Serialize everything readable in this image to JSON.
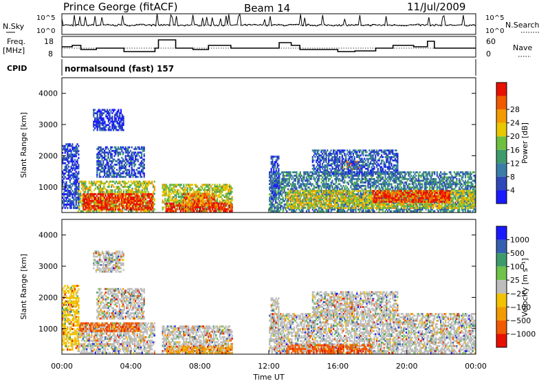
{
  "header": {
    "station": "Prince George (fitACF)",
    "beam": "Beam 14",
    "date": "11/Jul/2009"
  },
  "noise_panel": {
    "left_label": "N.Sky",
    "right_label": "N.Search",
    "left_ticks": [
      "10^5",
      "10^0"
    ],
    "right_ticks": [
      "10^5",
      "10^0"
    ]
  },
  "freq_panel": {
    "left_label_1": "Freq.",
    "left_label_2": "[MHz]",
    "right_label": "Nave",
    "left_ticks": [
      "18",
      "8"
    ],
    "right_ticks": [
      "60",
      "0"
    ]
  },
  "cpid": {
    "label": "CPID",
    "program": "normalsound (fast) 157"
  },
  "colors": {
    "power_scale": [
      "#1a1aff",
      "#2f48b8",
      "#3a7da8",
      "#3f9a6a",
      "#6fbf3f",
      "#e8c800",
      "#f29a00",
      "#f15a00",
      "#e81000"
    ],
    "velocity_scale": [
      "#e81000",
      "#f15a00",
      "#f29a00",
      "#f2c200",
      "#bdbdbd",
      "#6fc24a",
      "#3f9a6a",
      "#3560b0",
      "#1a1aff"
    ]
  },
  "chart_data": [
    {
      "type": "heatmap",
      "name": "power",
      "ylabel": "Slant Range [km]",
      "yticks": [
        "1000",
        "2000",
        "3000",
        "4000"
      ],
      "ylim": [
        180,
        4500
      ],
      "xlim_hours": [
        0,
        24
      ],
      "colorbar": {
        "label": "Power [dB]",
        "ticks": [
          "4",
          "8",
          "12",
          "16",
          "20",
          "24",
          "28"
        ],
        "range": [
          0,
          30
        ]
      },
      "regions": [
        {
          "t": [
            0.9,
            5.4
          ],
          "r": [
            200,
            1200
          ],
          "level": 0.55
        },
        {
          "t": [
            1.2,
            5.3
          ],
          "r": [
            250,
            800
          ],
          "level": 0.95
        },
        {
          "t": [
            0.0,
            1.0
          ],
          "r": [
            300,
            2400
          ],
          "level": 0.15
        },
        {
          "t": [
            1.8,
            3.6
          ],
          "r": [
            2800,
            3500
          ],
          "level": 0.1
        },
        {
          "t": [
            2.0,
            4.8
          ],
          "r": [
            1300,
            2300
          ],
          "level": 0.2
        },
        {
          "t": [
            5.8,
            9.9
          ],
          "r": [
            200,
            1100
          ],
          "level": 0.55
        },
        {
          "t": [
            6.0,
            9.9
          ],
          "r": [
            200,
            500
          ],
          "level": 0.97
        },
        {
          "t": [
            7.0,
            9.0
          ],
          "r": [
            400,
            800
          ],
          "level": 0.8
        },
        {
          "t": [
            12.0,
            24.0
          ],
          "r": [
            200,
            1500
          ],
          "level": 0.3
        },
        {
          "t": [
            13.0,
            24.0
          ],
          "r": [
            300,
            900
          ],
          "level": 0.6
        },
        {
          "t": [
            18.0,
            22.5
          ],
          "r": [
            500,
            900
          ],
          "level": 0.9
        },
        {
          "t": [
            16.2,
            17.3
          ],
          "r": [
            1550,
            1850
          ],
          "level": 0.8
        },
        {
          "t": [
            14.5,
            19.5
          ],
          "r": [
            1400,
            2200
          ],
          "level": 0.2
        },
        {
          "t": [
            12.1,
            12.6
          ],
          "r": [
            600,
            2000
          ],
          "level": 0.2
        }
      ]
    },
    {
      "type": "heatmap",
      "name": "velocity",
      "ylabel": "Slant Range [km]",
      "yticks": [
        "1000",
        "2000",
        "3000",
        "4000"
      ],
      "ylim": [
        180,
        4500
      ],
      "xlim_hours": [
        0,
        24
      ],
      "xticks": [
        "00:00",
        "04:00",
        "08:00",
        "12:00",
        "16:00",
        "20:00",
        "00:00"
      ],
      "xlabel": "Time UT",
      "colorbar": {
        "label": "Velocity [m s⁻¹]",
        "ticks": [
          "1000",
          "500",
          "100",
          "25",
          "−25",
          "−100",
          "−500",
          "−1000"
        ]
      },
      "regions": [
        {
          "t": [
            0.9,
            5.4
          ],
          "r": [
            200,
            1200
          ],
          "level": 0.5
        },
        {
          "t": [
            1.0,
            4.5
          ],
          "r": [
            900,
            1200
          ],
          "level": 0.2
        },
        {
          "t": [
            0.0,
            1.0
          ],
          "r": [
            300,
            2400
          ],
          "level": 0.35
        },
        {
          "t": [
            1.8,
            3.6
          ],
          "r": [
            2800,
            3500
          ],
          "level": 0.5
        },
        {
          "t": [
            2.0,
            4.8
          ],
          "r": [
            1300,
            2300
          ],
          "level": 0.45
        },
        {
          "t": [
            5.8,
            9.9
          ],
          "r": [
            200,
            1100
          ],
          "level": 0.5
        },
        {
          "t": [
            6.0,
            9.9
          ],
          "r": [
            200,
            450
          ],
          "level": 0.25
        },
        {
          "t": [
            12.0,
            24.0
          ],
          "r": [
            200,
            1500
          ],
          "level": 0.5
        },
        {
          "t": [
            13.0,
            18.0
          ],
          "r": [
            200,
            500
          ],
          "level": 0.2
        },
        {
          "t": [
            16.2,
            17.3
          ],
          "r": [
            1550,
            1850
          ],
          "level": 0.5
        },
        {
          "t": [
            14.5,
            19.5
          ],
          "r": [
            1400,
            2200
          ],
          "level": 0.5
        },
        {
          "t": [
            12.1,
            12.6
          ],
          "r": [
            600,
            2000
          ],
          "level": 0.45
        }
      ]
    }
  ]
}
